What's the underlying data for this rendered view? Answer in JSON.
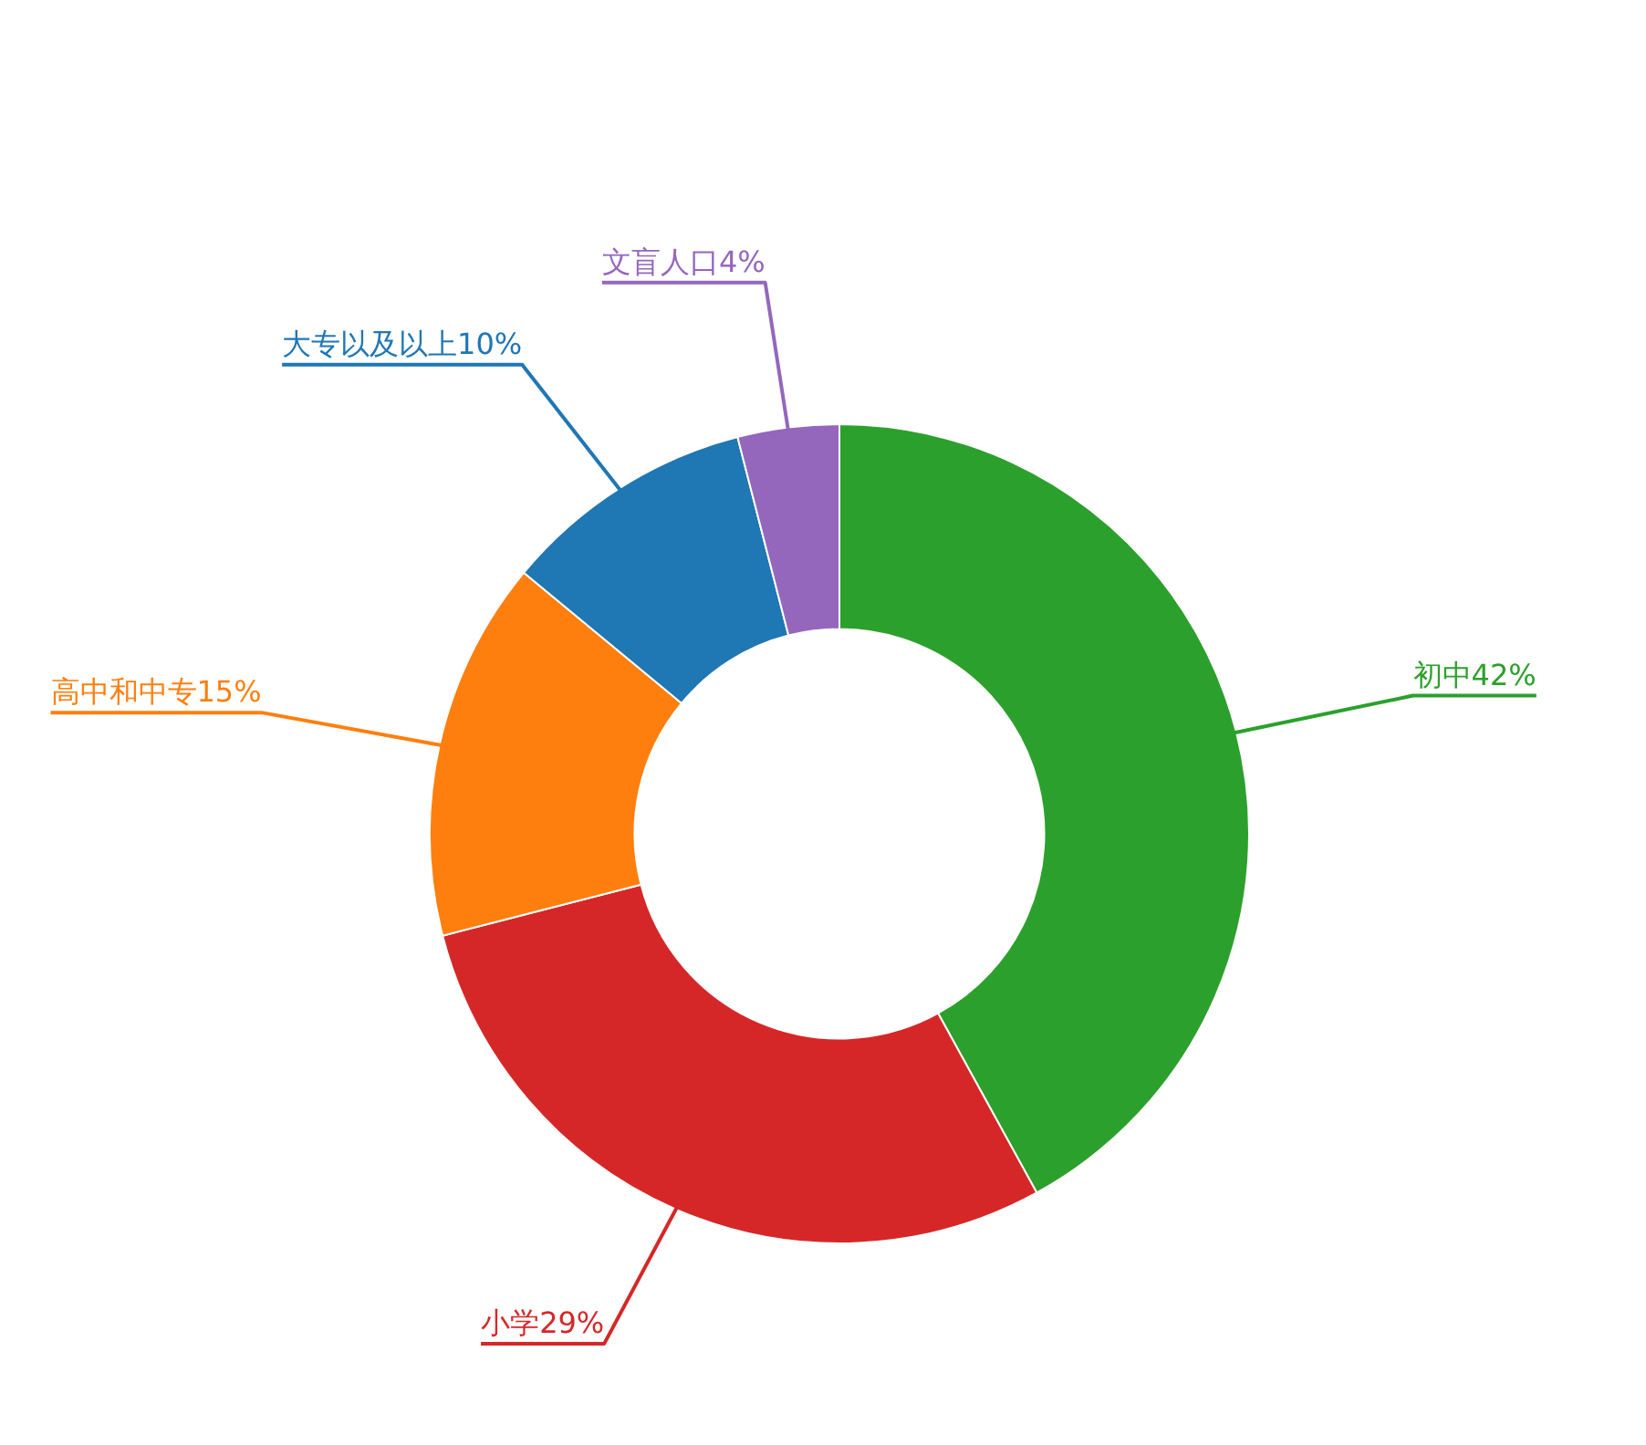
{
  "chart_data": {
    "type": "donut",
    "categories": [
      "初中",
      "小学",
      "高中和中专",
      "大专以及以上",
      "文盲人口"
    ],
    "values": [
      42,
      29,
      15,
      10,
      4
    ],
    "value_labels": [
      "42%",
      "29%",
      "15%",
      "10%",
      "4%"
    ],
    "colors": [
      "#2ca02c",
      "#d62728",
      "#ff7f0e",
      "#1f77b4",
      "#9467bd"
    ],
    "legend": false
  }
}
